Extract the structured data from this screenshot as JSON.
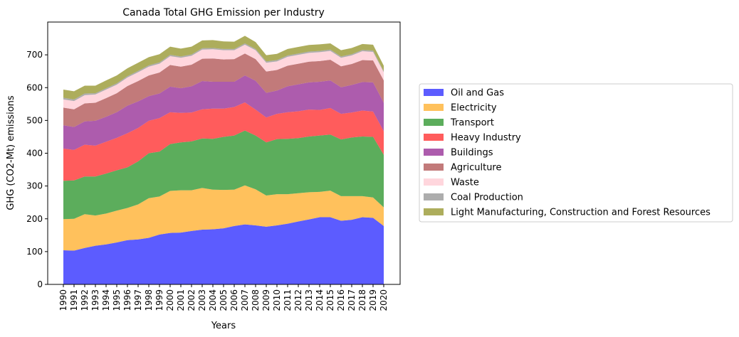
{
  "chart_data": {
    "type": "area",
    "stacked": true,
    "title": "Canada Total GHG Emission per Industry",
    "xlabel": "Years",
    "ylabel": "GHG (CO2-Mt) emissions",
    "ylim": [
      0,
      800
    ],
    "yticks": [
      0,
      100,
      200,
      300,
      400,
      500,
      600,
      700
    ],
    "legend_position": "right",
    "grid": false,
    "x": [
      "1990",
      "1991",
      "1992",
      "1993",
      "1994",
      "1995",
      "1996",
      "1997",
      "1998",
      "1999",
      "2000",
      "2001",
      "2002",
      "2003",
      "2004",
      "2005",
      "2006",
      "2007",
      "2008",
      "2009",
      "2010",
      "2011",
      "2012",
      "2013",
      "2014",
      "2015",
      "2016",
      "2017",
      "2018",
      "2019",
      "2020"
    ],
    "series": [
      {
        "name": "Oil and Gas",
        "color": "#3333ff",
        "values": [
          104,
          103,
          111,
          118,
          122,
          128,
          135,
          137,
          142,
          152,
          157,
          158,
          163,
          167,
          168,
          171,
          178,
          183,
          180,
          176,
          180,
          185,
          192,
          198,
          205,
          205,
          194,
          197,
          205,
          203,
          178
        ]
      },
      {
        "name": "Electricity",
        "color": "#ffb133",
        "values": [
          95,
          97,
          103,
          92,
          94,
          97,
          98,
          107,
          121,
          116,
          128,
          129,
          124,
          127,
          121,
          117,
          111,
          119,
          110,
          95,
          95,
          90,
          86,
          83,
          77,
          81,
          75,
          72,
          64,
          62,
          57
        ]
      },
      {
        "name": "Transport",
        "color": "#339933",
        "values": [
          117,
          117,
          115,
          119,
          122,
          123,
          124,
          131,
          137,
          137,
          143,
          146,
          149,
          151,
          155,
          162,
          165,
          167,
          164,
          162,
          168,
          169,
          168,
          170,
          172,
          171,
          173,
          179,
          182,
          185,
          160
        ]
      },
      {
        "name": "Heavy Industry",
        "color": "#ff3333",
        "values": [
          98,
          93,
          97,
          94,
          97,
          99,
          104,
          102,
          99,
          102,
          97,
          90,
          88,
          89,
          92,
          86,
          87,
          86,
          79,
          76,
          77,
          81,
          82,
          82,
          78,
          81,
          78,
          76,
          79,
          77,
          72
        ]
      },
      {
        "name": "Buildings",
        "color": "#993399",
        "values": [
          71,
          70,
          71,
          76,
          76,
          78,
          84,
          81,
          75,
          75,
          78,
          75,
          80,
          86,
          82,
          82,
          77,
          82,
          88,
          75,
          71,
          79,
          82,
          83,
          86,
          84,
          81,
          84,
          87,
          89,
          87
        ]
      },
      {
        "name": "Agriculture",
        "color": "#b35959",
        "values": [
          54,
          54,
          55,
          55,
          57,
          58,
          60,
          62,
          63,
          64,
          66,
          66,
          66,
          68,
          71,
          68,
          69,
          67,
          66,
          65,
          63,
          63,
          63,
          63,
          63,
          63,
          64,
          64,
          67,
          67,
          68
        ]
      },
      {
        "name": "Waste",
        "color": "#ffccd5",
        "values": [
          25,
          25,
          25,
          25,
          26,
          26,
          26,
          27,
          27,
          27,
          27,
          27,
          27,
          28,
          28,
          28,
          27,
          27,
          27,
          27,
          26,
          27,
          27,
          27,
          27,
          27,
          26,
          26,
          27,
          26,
          25
        ]
      },
      {
        "name": "Coal Production",
        "color": "#999999",
        "values": [
          5,
          5,
          5,
          4,
          4,
          4,
          4,
          4,
          4,
          4,
          4,
          4,
          4,
          4,
          4,
          4,
          4,
          4,
          4,
          4,
          4,
          4,
          4,
          4,
          4,
          4,
          4,
          4,
          4,
          4,
          3
        ]
      },
      {
        "name": "Light Manufacturing, Construction and Forest Resources",
        "color": "#999933",
        "values": [
          25,
          25,
          24,
          23,
          24,
          24,
          24,
          25,
          25,
          25,
          25,
          24,
          24,
          24,
          24,
          23,
          22,
          23,
          21,
          19,
          19,
          20,
          20,
          20,
          20,
          19,
          19,
          19,
          18,
          18,
          17
        ]
      }
    ]
  }
}
